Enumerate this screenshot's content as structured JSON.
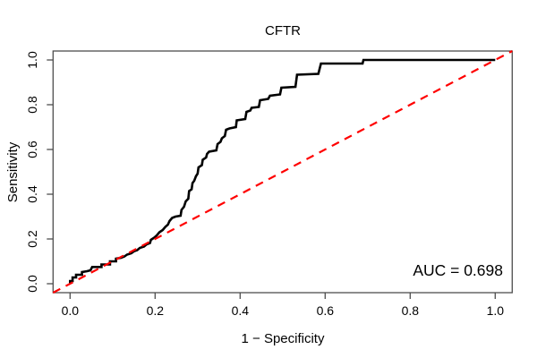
{
  "chart_data": {
    "type": "line",
    "subtype": "roc_curve",
    "title": "CFTR",
    "xlabel": "1 − Specificity",
    "ylabel": "Sensitivity",
    "xlim": [
      0,
      1
    ],
    "ylim": [
      0,
      1
    ],
    "axis_expansion": 0.04,
    "grid": false,
    "legend": null,
    "xticks": {
      "values": [
        0,
        0.2,
        0.4,
        0.6,
        0.8,
        1.0
      ],
      "labels": [
        "0.0",
        "0.2",
        "0.4",
        "0.6",
        "0.8",
        "1.0"
      ]
    },
    "yticks": {
      "values": [
        0,
        0.2,
        0.4,
        0.6,
        0.8,
        1.0
      ],
      "labels": [
        "0.0",
        "0.2",
        "0.4",
        "0.6",
        "0.8",
        "1.0"
      ]
    },
    "colors": {
      "roc_curve": "#000000",
      "chance_line": "#FF0000",
      "axis": "#4d4d4d"
    },
    "annotations": [
      {
        "text": "AUC = 0.698",
        "position": "bottom-right"
      }
    ],
    "auc": 0.698,
    "series": [
      {
        "name": "ROC curve",
        "color": "#000000",
        "style": "solid",
        "points": [
          [
            0.0,
            0.0
          ],
          [
            0.0,
            0.012
          ],
          [
            0.006,
            0.012
          ],
          [
            0.006,
            0.028
          ],
          [
            0.014,
            0.028
          ],
          [
            0.014,
            0.04
          ],
          [
            0.028,
            0.04
          ],
          [
            0.028,
            0.052
          ],
          [
            0.04,
            0.056
          ],
          [
            0.048,
            0.06
          ],
          [
            0.052,
            0.075
          ],
          [
            0.074,
            0.075
          ],
          [
            0.074,
            0.086
          ],
          [
            0.094,
            0.086
          ],
          [
            0.094,
            0.1
          ],
          [
            0.108,
            0.1
          ],
          [
            0.108,
            0.112
          ],
          [
            0.12,
            0.116
          ],
          [
            0.128,
            0.122
          ],
          [
            0.134,
            0.13
          ],
          [
            0.144,
            0.136
          ],
          [
            0.15,
            0.145
          ],
          [
            0.158,
            0.15
          ],
          [
            0.164,
            0.16
          ],
          [
            0.174,
            0.166
          ],
          [
            0.18,
            0.176
          ],
          [
            0.188,
            0.182
          ],
          [
            0.19,
            0.196
          ],
          [
            0.198,
            0.206
          ],
          [
            0.204,
            0.216
          ],
          [
            0.21,
            0.23
          ],
          [
            0.218,
            0.24
          ],
          [
            0.224,
            0.254
          ],
          [
            0.23,
            0.264
          ],
          [
            0.234,
            0.28
          ],
          [
            0.24,
            0.294
          ],
          [
            0.248,
            0.3
          ],
          [
            0.26,
            0.304
          ],
          [
            0.262,
            0.33
          ],
          [
            0.268,
            0.344
          ],
          [
            0.272,
            0.368
          ],
          [
            0.278,
            0.38
          ],
          [
            0.28,
            0.414
          ],
          [
            0.286,
            0.422
          ],
          [
            0.288,
            0.45
          ],
          [
            0.292,
            0.46
          ],
          [
            0.296,
            0.48
          ],
          [
            0.3,
            0.492
          ],
          [
            0.302,
            0.52
          ],
          [
            0.31,
            0.53
          ],
          [
            0.312,
            0.554
          ],
          [
            0.32,
            0.564
          ],
          [
            0.322,
            0.58
          ],
          [
            0.327,
            0.59
          ],
          [
            0.344,
            0.596
          ],
          [
            0.347,
            0.624
          ],
          [
            0.354,
            0.634
          ],
          [
            0.357,
            0.65
          ],
          [
            0.364,
            0.66
          ],
          [
            0.367,
            0.688
          ],
          [
            0.375,
            0.694
          ],
          [
            0.39,
            0.7
          ],
          [
            0.392,
            0.73
          ],
          [
            0.412,
            0.736
          ],
          [
            0.415,
            0.768
          ],
          [
            0.424,
            0.774
          ],
          [
            0.427,
            0.786
          ],
          [
            0.444,
            0.79
          ],
          [
            0.447,
            0.82
          ],
          [
            0.466,
            0.826
          ],
          [
            0.47,
            0.84
          ],
          [
            0.494,
            0.846
          ],
          [
            0.497,
            0.876
          ],
          [
            0.53,
            0.88
          ],
          [
            0.534,
            0.934
          ],
          [
            0.584,
            0.938
          ],
          [
            0.59,
            0.984
          ],
          [
            0.688,
            0.984
          ],
          [
            0.69,
            1.0
          ],
          [
            1.0,
            1.0
          ]
        ]
      },
      {
        "name": "chance diagonal",
        "color": "#FF0000",
        "style": "dashed",
        "points": [
          [
            0,
            0
          ],
          [
            1,
            1
          ]
        ],
        "clip_to_box": true
      }
    ]
  }
}
